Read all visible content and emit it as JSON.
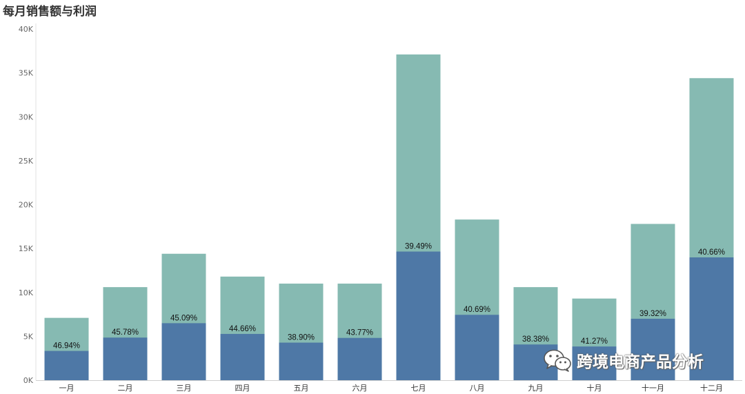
{
  "chart_data": {
    "type": "bar",
    "stacked": false,
    "title": "每月销售额与利润",
    "categories": [
      "一月",
      "二月",
      "三月",
      "四月",
      "五月",
      "六月",
      "七月",
      "八月",
      "九月",
      "十月",
      "十一月",
      "十二月"
    ],
    "series": [
      {
        "values": [
          7100,
          10600,
          14400,
          11800,
          11000,
          11000,
          37100,
          18300,
          10600,
          9300,
          17800,
          34400
        ],
        "color": "#86bab2"
      },
      {
        "values": [
          3333,
          4853,
          6493,
          5270,
          4279,
          4815,
          14651,
          7446,
          4068,
          3838,
          6999,
          13987
        ],
        "color": "#4e78a6"
      }
    ],
    "data_labels": [
      "46.94%",
      "45.78%",
      "45.09%",
      "44.66%",
      "38.90%",
      "43.77%",
      "39.49%",
      "40.69%",
      "38.38%",
      "41.27%",
      "39.32%",
      "40.66%"
    ],
    "ylim": [
      0,
      40000
    ],
    "yticks": [
      0,
      5000,
      10000,
      15000,
      20000,
      25000,
      30000,
      35000,
      40000
    ],
    "ytick_labels": [
      "0K",
      "5K",
      "10K",
      "15K",
      "20K",
      "25K",
      "30K",
      "35K",
      "40K"
    ],
    "grid": false
  },
  "watermark": {
    "icon": "wechat-icon",
    "text": "跨境电商产品分析"
  }
}
